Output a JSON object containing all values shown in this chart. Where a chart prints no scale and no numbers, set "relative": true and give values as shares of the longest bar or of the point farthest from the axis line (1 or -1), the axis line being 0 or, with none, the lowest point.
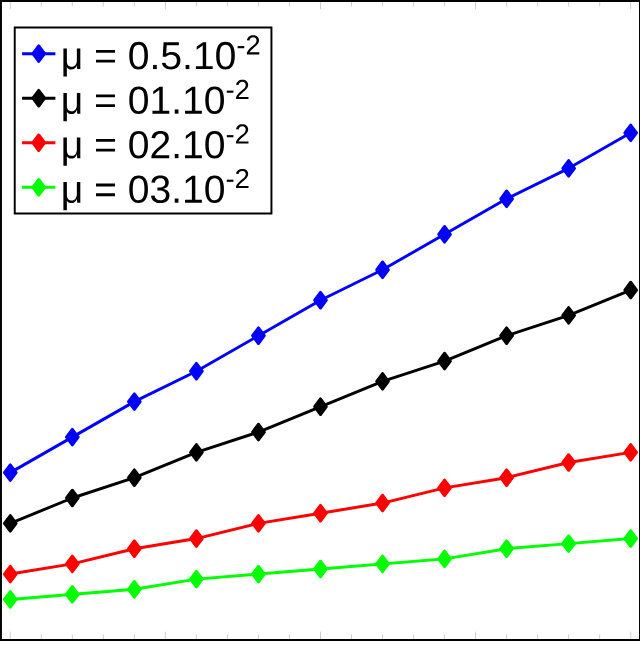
{
  "chart_data": {
    "type": "line",
    "relative": true,
    "marker": "diamond",
    "line_style": "solid",
    "legend": "top left",
    "tick_labels": false,
    "categories": [
      null,
      null,
      null,
      null,
      null,
      null,
      null,
      null,
      null,
      null,
      null
    ],
    "series": [
      {
        "name": "μ = 0.5.10$^{-2}$",
        "color": "#0000ff",
        "values": [
          0.33,
          0.4,
          0.47,
          0.53,
          0.6,
          0.67,
          0.73,
          0.8,
          0.87,
          0.93,
          1.0
        ]
      },
      {
        "name": "μ = 01.10$^{-2}$",
        "color": "#000000",
        "values": [
          0.23,
          0.28,
          0.32,
          0.37,
          0.41,
          0.46,
          0.51,
          0.55,
          0.6,
          0.64,
          0.69
        ]
      },
      {
        "name": "μ = 02.10$^{-2}$",
        "color": "#ff0000",
        "values": [
          0.13,
          0.15,
          0.18,
          0.2,
          0.23,
          0.25,
          0.27,
          0.3,
          0.32,
          0.35,
          0.37
        ]
      },
      {
        "name": "μ = 03.10$^{-2}$",
        "color": "#00ff00",
        "values": [
          0.08,
          0.09,
          0.1,
          0.12,
          0.13,
          0.14,
          0.15,
          0.16,
          0.18,
          0.19,
          0.2
        ]
      }
    ]
  }
}
